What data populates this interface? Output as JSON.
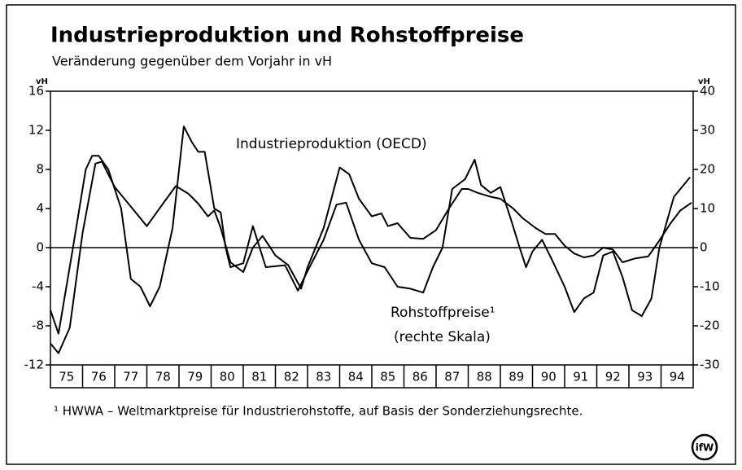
{
  "chart_data": {
    "type": "line",
    "title": "Industrieproduktion und Rohstoffpreise",
    "subtitle": "Veränderung gegenüber dem Vorjahr in vH",
    "y_label": "vH",
    "y2_label": "vH",
    "categories": [
      "75",
      "76",
      "77",
      "78",
      "79",
      "80",
      "81",
      "82",
      "83",
      "84",
      "85",
      "86",
      "87",
      "88",
      "89",
      "90",
      "91",
      "92",
      "93",
      "94"
    ],
    "xlim": [
      75,
      95
    ],
    "ylim": [
      -12,
      16
    ],
    "yticks": [
      -12,
      -8,
      -4,
      0,
      4,
      8,
      12,
      16
    ],
    "y2lim": [
      -30,
      40
    ],
    "y2ticks": [
      -30,
      -20,
      -10,
      0,
      10,
      20,
      30,
      40
    ],
    "zero_line": true,
    "annotations": [
      "Industrieproduktion (OECD)",
      "Rohstoffpreise¹",
      "(rechte Skala)"
    ],
    "footnote": "¹ HWWA – Weltmarktpreise für Industrierohstoffe, auf Basis der Sonderziehungsrechte.",
    "logo": "ifW",
    "series": [
      {
        "name": "Industrieproduktion (OECD)",
        "color": "#000000",
        "axis": "y",
        "x": [
          75.0,
          75.25,
          75.6,
          76.0,
          76.4,
          76.6,
          77.0,
          77.5,
          78.0,
          78.5,
          78.9,
          79.3,
          79.6,
          79.9,
          80.1,
          80.3,
          80.6,
          81.0,
          81.3,
          81.6,
          82.0,
          82.4,
          82.8,
          83.0,
          83.5,
          84.0,
          84.3,
          84.6,
          85.0,
          85.3,
          85.5,
          85.8,
          86.2,
          86.6,
          87.0,
          87.4,
          87.8,
          88.0,
          88.3,
          88.7,
          89.0,
          89.4,
          89.7,
          90.1,
          90.4,
          90.7,
          91.0,
          91.3,
          91.6,
          91.9,
          92.2,
          92.5,
          92.8,
          93.2,
          93.6,
          93.9,
          94.3,
          94.6,
          94.95
        ],
        "values": [
          -9.8,
          -10.8,
          -8.2,
          1.5,
          8.6,
          8.8,
          6.2,
          4.2,
          2.2,
          4.5,
          6.3,
          5.5,
          4.5,
          3.2,
          3.8,
          2.0,
          -1.5,
          -2.5,
          0,
          1.2,
          -0.8,
          -1.8,
          -4.2,
          -2.0,
          2.0,
          8.2,
          7.5,
          5.0,
          3.2,
          3.5,
          2.2,
          2.5,
          1.0,
          0.9,
          1.8,
          4.0,
          6.0,
          6.0,
          5.6,
          5.2,
          5.0,
          4.0,
          3.0,
          2.0,
          1.4,
          1.4,
          0.2,
          -0.6,
          -1.0,
          -0.8,
          0,
          -0.2,
          -1.5,
          -1.1,
          -0.9,
          0.5,
          2.5,
          3.8,
          4.6
        ]
      },
      {
        "name": "Rohstoffpreise",
        "color": "#000000",
        "axis": "y2",
        "x": [
          75.0,
          75.25,
          75.7,
          76.1,
          76.3,
          76.5,
          76.8,
          77.2,
          77.5,
          77.8,
          78.1,
          78.4,
          78.8,
          79.15,
          79.4,
          79.6,
          79.8,
          80.1,
          80.3,
          80.45,
          80.6,
          81.0,
          81.3,
          81.7,
          82.3,
          82.7,
          83.0,
          83.5,
          83.9,
          84.2,
          84.6,
          85.0,
          85.4,
          85.8,
          86.2,
          86.6,
          86.9,
          87.2,
          87.5,
          87.9,
          88.2,
          88.4,
          88.7,
          89.0,
          89.3,
          89.6,
          89.8,
          90.0,
          90.3,
          90.6,
          91.0,
          91.3,
          91.6,
          91.9,
          92.2,
          92.5,
          92.8,
          93.1,
          93.4,
          93.7,
          93.95,
          94.4,
          94.9
        ],
        "values": [
          -16,
          -22,
          0,
          20,
          23.5,
          23.5,
          20,
          10,
          -8,
          -10,
          -15,
          -10,
          5,
          31,
          27,
          24.5,
          24.5,
          10,
          9,
          0,
          -5,
          -4,
          5.5,
          -5,
          -4.5,
          -11,
          -6,
          2,
          11,
          11.5,
          2,
          -4,
          -5,
          -10,
          -10.5,
          -11.5,
          -5,
          0,
          15,
          17.5,
          22.5,
          16,
          14,
          15.5,
          8,
          0,
          -5,
          -1,
          2,
          -3,
          -10,
          -16.5,
          -13,
          -11.5,
          -2,
          -1,
          -7.5,
          -16,
          -17.5,
          -13,
          0,
          13,
          18
        ]
      }
    ]
  }
}
